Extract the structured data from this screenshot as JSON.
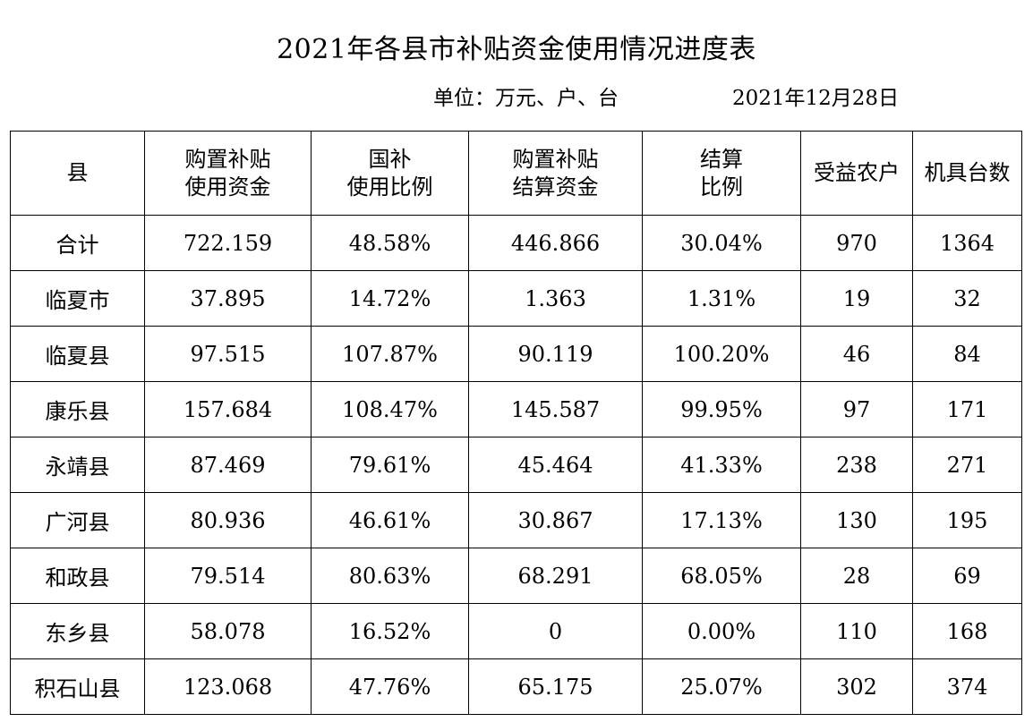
{
  "title": "2021年各县市补贴资金使用情况进度表",
  "unit_label": "单位：万元、户、台",
  "date": "2021年12月28日",
  "table": {
    "headers": [
      {
        "lines": [
          "县"
        ]
      },
      {
        "lines": [
          "购置补贴",
          "使用资金"
        ]
      },
      {
        "lines": [
          "国补",
          "使用比例"
        ]
      },
      {
        "lines": [
          "购置补贴",
          "结算资金"
        ]
      },
      {
        "lines": [
          "结算",
          "比例"
        ]
      },
      {
        "lines": [
          "受益农户"
        ]
      },
      {
        "lines": [
          "机具台数"
        ]
      }
    ],
    "rows": [
      [
        "合计",
        "722.159",
        "48.58%",
        "446.866",
        "30.04%",
        "970",
        "1364"
      ],
      [
        "临夏市",
        "37.895",
        "14.72%",
        "1.363",
        "1.31%",
        "19",
        "32"
      ],
      [
        "临夏县",
        "97.515",
        "107.87%",
        "90.119",
        "100.20%",
        "46",
        "84"
      ],
      [
        "康乐县",
        "157.684",
        "108.47%",
        "145.587",
        "99.95%",
        "97",
        "171"
      ],
      [
        "永靖县",
        "87.469",
        "79.61%",
        "45.464",
        "41.33%",
        "238",
        "271"
      ],
      [
        "广河县",
        "80.936",
        "46.61%",
        "30.867",
        "17.13%",
        "130",
        "195"
      ],
      [
        "和政县",
        "79.514",
        "80.63%",
        "68.291",
        "68.05%",
        "28",
        "69"
      ],
      [
        "东乡县",
        "58.078",
        "16.52%",
        "0",
        "0.00%",
        "110",
        "168"
      ],
      [
        "积石山县",
        "123.068",
        "47.76%",
        "65.175",
        "25.07%",
        "302",
        "374"
      ]
    ]
  }
}
